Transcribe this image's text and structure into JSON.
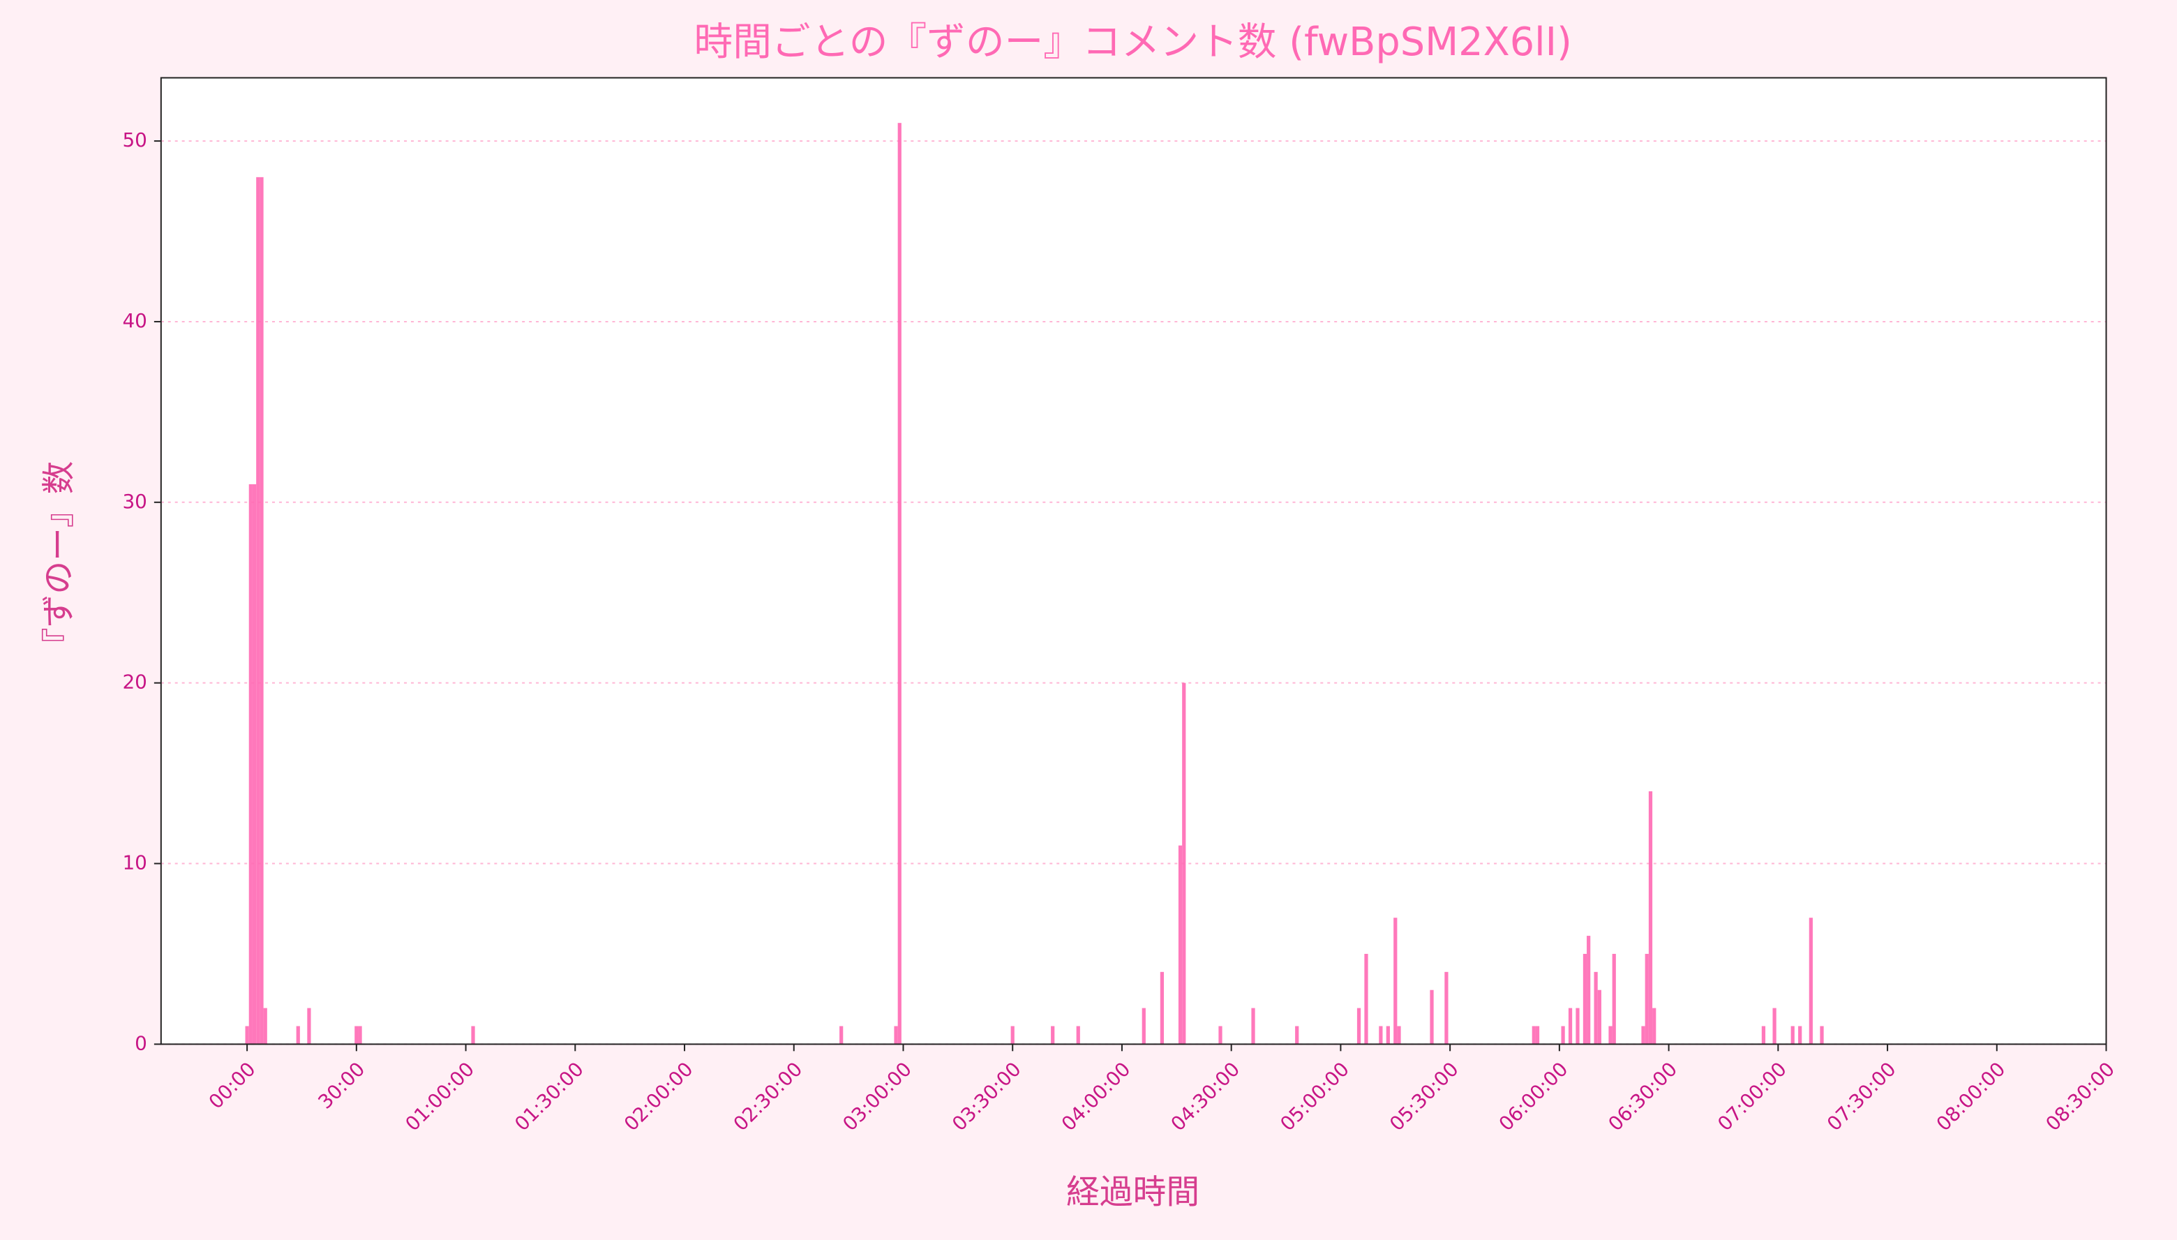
{
  "chart_data": {
    "type": "bar",
    "title": "時間ごとの『ずのー』コメント数 (fwBpSM2X6lI)",
    "x_label": "経過時間",
    "y_label": "『ずのー』数",
    "color": "#ff69b4",
    "x": [
      0,
      1,
      2,
      3,
      4,
      5,
      14,
      17,
      30,
      31,
      62,
      163,
      178,
      179,
      210,
      221,
      228,
      246,
      251,
      256,
      257,
      267,
      276,
      288,
      305,
      307,
      311,
      313,
      315,
      316,
      325,
      329,
      353,
      354,
      361,
      363,
      365,
      367,
      368,
      370,
      371,
      374,
      375,
      383,
      384,
      385,
      386,
      416,
      419,
      424,
      426,
      429,
      432
    ],
    "values": [
      1,
      31,
      31,
      48,
      48,
      2,
      1,
      2,
      1,
      1,
      1,
      1,
      1,
      51,
      1,
      1,
      1,
      2,
      4,
      11,
      20,
      1,
      2,
      1,
      2,
      5,
      1,
      1,
      7,
      1,
      3,
      4,
      1,
      1,
      1,
      2,
      2,
      5,
      6,
      4,
      3,
      1,
      5,
      1,
      5,
      14,
      2,
      1,
      2,
      1,
      1,
      7,
      1
    ],
    "xlim": [
      -23.6,
      510
    ],
    "ylim": [
      0,
      53.5
    ],
    "xticks": [
      {
        "value": 0,
        "label": "00:00"
      },
      {
        "value": 30,
        "label": "30:00"
      },
      {
        "value": 60,
        "label": "01:00:00"
      },
      {
        "value": 90,
        "label": "01:30:00"
      },
      {
        "value": 120,
        "label": "02:00:00"
      },
      {
        "value": 150,
        "label": "02:30:00"
      },
      {
        "value": 180,
        "label": "03:00:00"
      },
      {
        "value": 210,
        "label": "03:30:00"
      },
      {
        "value": 240,
        "label": "04:00:00"
      },
      {
        "value": 270,
        "label": "04:30:00"
      },
      {
        "value": 300,
        "label": "05:00:00"
      },
      {
        "value": 330,
        "label": "05:30:00"
      },
      {
        "value": 360,
        "label": "06:00:00"
      },
      {
        "value": 390,
        "label": "06:30:00"
      },
      {
        "value": 420,
        "label": "07:00:00"
      },
      {
        "value": 450,
        "label": "07:30:00"
      },
      {
        "value": 480,
        "label": "08:00:00"
      },
      {
        "value": 510,
        "label": "08:30:00"
      }
    ],
    "yticks": [
      0,
      10,
      20,
      30,
      40,
      50
    ],
    "grid": true
  }
}
